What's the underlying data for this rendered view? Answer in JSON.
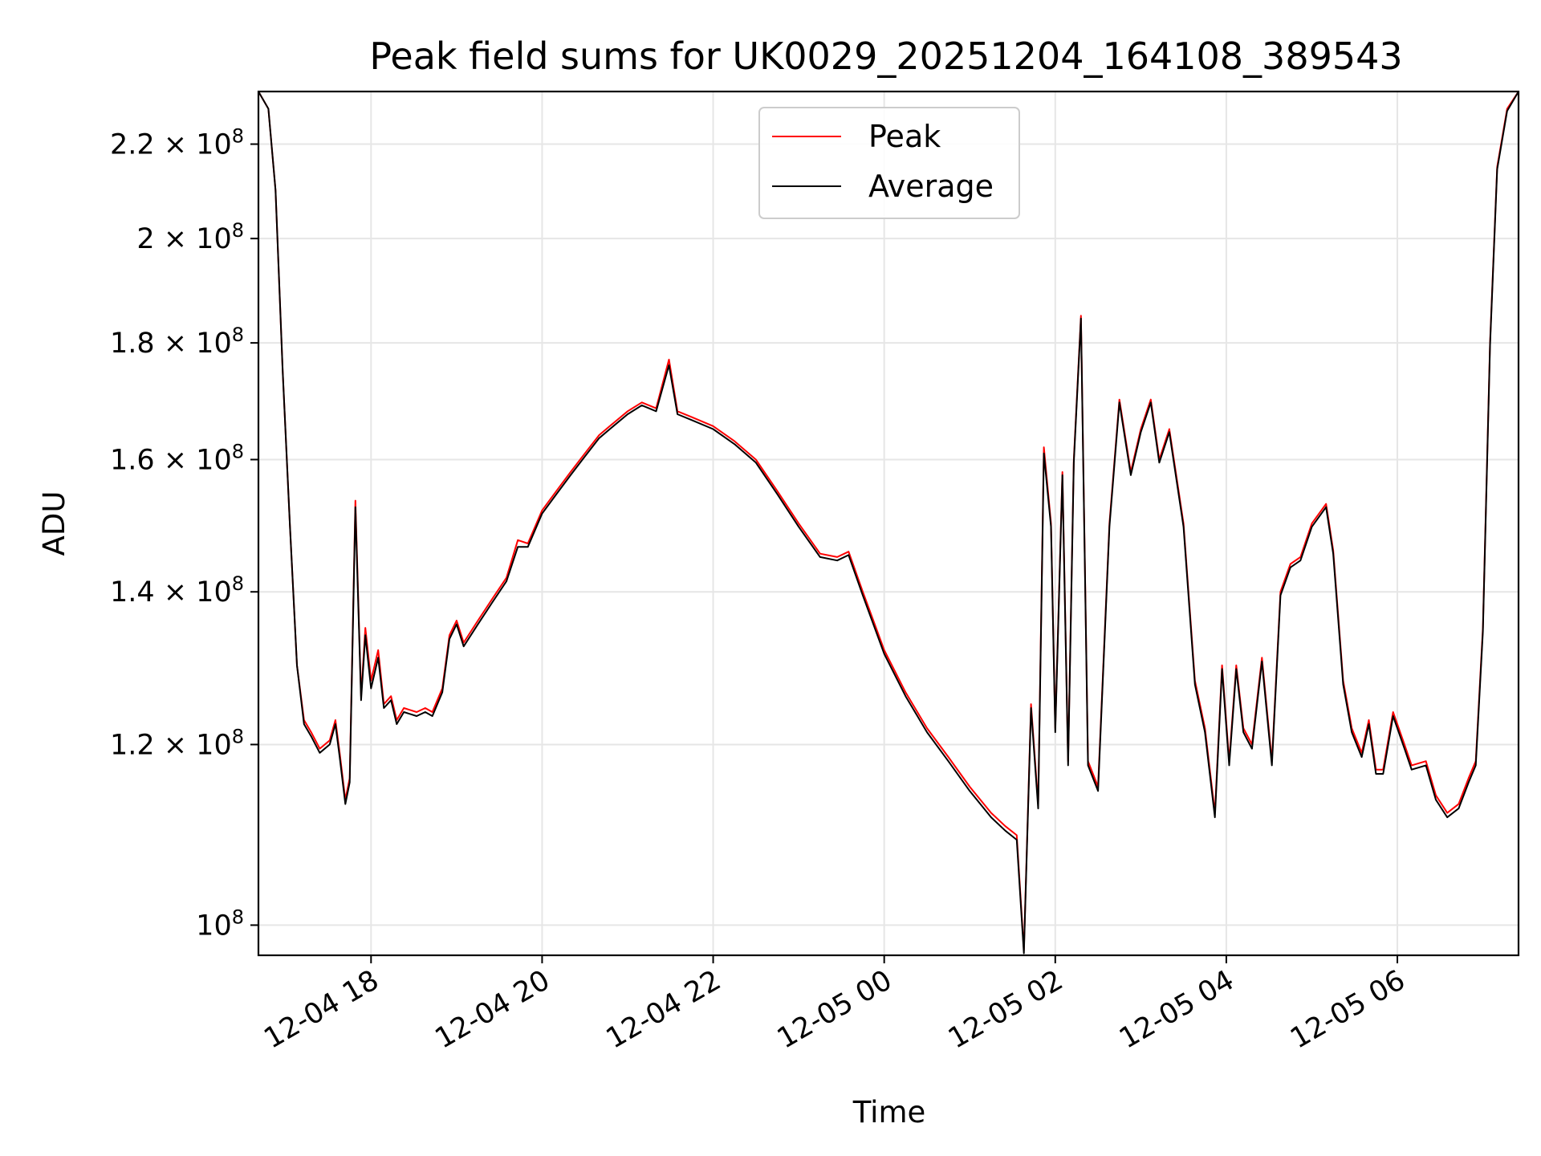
{
  "chart_data": {
    "type": "line",
    "title": "Peak field sums for UK0029_20251204_164108_389543",
    "xlabel": "Time",
    "ylabel": "ADU",
    "y_scale": "log",
    "ylim": [
      97000000,
      232000000
    ],
    "xlim": [
      "2025-12-04 16:41",
      "2025-12-05 07:25"
    ],
    "grid": true,
    "legend_position": "top-center",
    "x_ticks": [
      {
        "t": "2025-12-04 18:00",
        "label": "12-04 18"
      },
      {
        "t": "2025-12-04 20:00",
        "label": "12-04 20"
      },
      {
        "t": "2025-12-04 22:00",
        "label": "12-04 22"
      },
      {
        "t": "2025-12-05 00:00",
        "label": "12-05 00"
      },
      {
        "t": "2025-12-05 02:00",
        "label": "12-05 02"
      },
      {
        "t": "2025-12-05 04:00",
        "label": "12-05 04"
      },
      {
        "t": "2025-12-05 06:00",
        "label": "12-05 06"
      }
    ],
    "y_ticks": [
      {
        "value": 100000000,
        "mant": "",
        "exp": "8"
      },
      {
        "value": 120000000,
        "mant": "1.2",
        "exp": "8"
      },
      {
        "value": 140000000,
        "mant": "1.4",
        "exp": "8"
      },
      {
        "value": 160000000,
        "mant": "1.6",
        "exp": "8"
      },
      {
        "value": 180000000,
        "mant": "1.8",
        "exp": "8"
      },
      {
        "value": 200000000,
        "mant": "2",
        "exp": "8"
      },
      {
        "value": 220000000,
        "mant": "2.2",
        "exp": "8"
      }
    ],
    "series": [
      {
        "name": "Peak",
        "color": "#ff0000",
        "points": [
          [
            "2025-12-04 16:41",
            232.0
          ],
          [
            "2025-12-04 16:48",
            228.0
          ],
          [
            "2025-12-04 16:53",
            210.0
          ],
          [
            "2025-12-04 16:58",
            175.0
          ],
          [
            "2025-12-04 17:03",
            150.0
          ],
          [
            "2025-12-04 17:08",
            130.0
          ],
          [
            "2025-12-04 17:13",
            123.0
          ],
          [
            "2025-12-04 17:18",
            121.5
          ],
          [
            "2025-12-04 17:24",
            119.5
          ],
          [
            "2025-12-04 17:31",
            120.5
          ],
          [
            "2025-12-04 17:35",
            123.0
          ],
          [
            "2025-12-04 17:38",
            119.0
          ],
          [
            "2025-12-04 17:42",
            113.5
          ],
          [
            "2025-12-04 17:45",
            116.0
          ],
          [
            "2025-12-04 17:49",
            153.5
          ],
          [
            "2025-12-04 17:53",
            126.0
          ],
          [
            "2025-12-04 17:56",
            135.0
          ],
          [
            "2025-12-04 18:00",
            128.0
          ],
          [
            "2025-12-04 18:05",
            132.0
          ],
          [
            "2025-12-04 18:09",
            125.0
          ],
          [
            "2025-12-04 18:14",
            126.0
          ],
          [
            "2025-12-04 18:18",
            123.0
          ],
          [
            "2025-12-04 18:23",
            124.5
          ],
          [
            "2025-12-04 18:32",
            124.0
          ],
          [
            "2025-12-04 18:38",
            124.5
          ],
          [
            "2025-12-04 18:43",
            124.0
          ],
          [
            "2025-12-04 18:50",
            127.0
          ],
          [
            "2025-12-04 18:55",
            134.0
          ],
          [
            "2025-12-04 19:00",
            136.0
          ],
          [
            "2025-12-04 19:05",
            133.0
          ],
          [
            "2025-12-04 19:15",
            136.0
          ],
          [
            "2025-12-04 19:25",
            139.0
          ],
          [
            "2025-12-04 19:35",
            142.0
          ],
          [
            "2025-12-04 19:43",
            147.5
          ],
          [
            "2025-12-04 19:50",
            147.0
          ],
          [
            "2025-12-04 20:00",
            152.0
          ],
          [
            "2025-12-04 20:10",
            155.0
          ],
          [
            "2025-12-04 20:20",
            158.0
          ],
          [
            "2025-12-04 20:30",
            161.0
          ],
          [
            "2025-12-04 20:40",
            164.0
          ],
          [
            "2025-12-04 20:50",
            166.0
          ],
          [
            "2025-12-04 21:00",
            168.0
          ],
          [
            "2025-12-04 21:10",
            169.5
          ],
          [
            "2025-12-04 21:20",
            168.5
          ],
          [
            "2025-12-04 21:29",
            177.0
          ],
          [
            "2025-12-04 21:35",
            168.0
          ],
          [
            "2025-12-04 21:45",
            167.0
          ],
          [
            "2025-12-04 22:00",
            165.5
          ],
          [
            "2025-12-04 22:15",
            163.0
          ],
          [
            "2025-12-04 22:30",
            160.0
          ],
          [
            "2025-12-04 22:45",
            155.0
          ],
          [
            "2025-12-04 23:00",
            150.0
          ],
          [
            "2025-12-04 23:15",
            145.5
          ],
          [
            "2025-12-04 23:27",
            145.0
          ],
          [
            "2025-12-04 23:35",
            145.8
          ],
          [
            "2025-12-04 23:45",
            140.0
          ],
          [
            "2025-12-05 00:00",
            132.0
          ],
          [
            "2025-12-05 00:15",
            126.5
          ],
          [
            "2025-12-05 00:30",
            122.0
          ],
          [
            "2025-12-05 00:45",
            118.5
          ],
          [
            "2025-12-05 01:00",
            115.0
          ],
          [
            "2025-12-05 01:15",
            112.0
          ],
          [
            "2025-12-05 01:25",
            110.5
          ],
          [
            "2025-12-05 01:33",
            109.5
          ],
          [
            "2025-12-05 01:38",
            97.5
          ],
          [
            "2025-12-05 01:43",
            125.0
          ],
          [
            "2025-12-05 01:48",
            113.0
          ],
          [
            "2025-12-05 01:52",
            162.0
          ],
          [
            "2025-12-05 01:57",
            150.0
          ],
          [
            "2025-12-05 02:00",
            122.0
          ],
          [
            "2025-12-05 02:05",
            158.0
          ],
          [
            "2025-12-05 02:09",
            118.0
          ],
          [
            "2025-12-05 02:13",
            160.0
          ],
          [
            "2025-12-05 02:18",
            185.0
          ],
          [
            "2025-12-05 02:23",
            118.0
          ],
          [
            "2025-12-05 02:30",
            115.0
          ],
          [
            "2025-12-05 02:38",
            150.0
          ],
          [
            "2025-12-05 02:45",
            170.0
          ],
          [
            "2025-12-05 02:53",
            158.0
          ],
          [
            "2025-12-05 03:00",
            165.0
          ],
          [
            "2025-12-05 03:07",
            170.0
          ],
          [
            "2025-12-05 03:13",
            160.0
          ],
          [
            "2025-12-05 03:20",
            165.0
          ],
          [
            "2025-12-05 03:30",
            150.0
          ],
          [
            "2025-12-05 03:38",
            128.0
          ],
          [
            "2025-12-05 03:45",
            122.0
          ],
          [
            "2025-12-05 03:52",
            112.0
          ],
          [
            "2025-12-05 03:57",
            130.0
          ],
          [
            "2025-12-05 04:02",
            118.0
          ],
          [
            "2025-12-05 04:07",
            130.0
          ],
          [
            "2025-12-05 04:12",
            122.0
          ],
          [
            "2025-12-05 04:18",
            120.0
          ],
          [
            "2025-12-05 04:25",
            131.0
          ],
          [
            "2025-12-05 04:32",
            118.0
          ],
          [
            "2025-12-05 04:38",
            140.0
          ],
          [
            "2025-12-05 04:45",
            144.0
          ],
          [
            "2025-12-05 04:52",
            145.0
          ],
          [
            "2025-12-05 05:00",
            150.0
          ],
          [
            "2025-12-05 05:10",
            153.0
          ],
          [
            "2025-12-05 05:15",
            146.0
          ],
          [
            "2025-12-05 05:22",
            128.0
          ],
          [
            "2025-12-05 05:28",
            122.0
          ],
          [
            "2025-12-05 05:35",
            119.0
          ],
          [
            "2025-12-05 05:40",
            123.0
          ],
          [
            "2025-12-05 05:45",
            117.0
          ],
          [
            "2025-12-05 05:50",
            117.0
          ],
          [
            "2025-12-05 05:57",
            124.0
          ],
          [
            "2025-12-05 06:05",
            120.0
          ],
          [
            "2025-12-05 06:10",
            117.5
          ],
          [
            "2025-12-05 06:20",
            118.0
          ],
          [
            "2025-12-05 06:27",
            114.0
          ],
          [
            "2025-12-05 06:35",
            112.0
          ],
          [
            "2025-12-05 06:43",
            113.0
          ],
          [
            "2025-12-05 06:50",
            116.0
          ],
          [
            "2025-12-05 06:55",
            118.0
          ],
          [
            "2025-12-05 07:00",
            135.0
          ],
          [
            "2025-12-05 07:05",
            180.0
          ],
          [
            "2025-12-05 07:10",
            215.0
          ],
          [
            "2025-12-05 07:17",
            228.0
          ],
          [
            "2025-12-05 07:25",
            232.0
          ]
        ]
      },
      {
        "name": "Average",
        "color": "#000000",
        "points": [
          [
            "2025-12-04 16:41",
            232.0
          ],
          [
            "2025-12-04 16:48",
            228.0
          ],
          [
            "2025-12-04 16:53",
            210.0
          ],
          [
            "2025-12-04 16:58",
            175.0
          ],
          [
            "2025-12-04 17:03",
            150.0
          ],
          [
            "2025-12-04 17:08",
            130.0
          ],
          [
            "2025-12-04 17:13",
            122.5
          ],
          [
            "2025-12-04 17:18",
            121.0
          ],
          [
            "2025-12-04 17:24",
            119.0
          ],
          [
            "2025-12-04 17:31",
            120.0
          ],
          [
            "2025-12-04 17:35",
            122.5
          ],
          [
            "2025-12-04 17:38",
            118.5
          ],
          [
            "2025-12-04 17:42",
            113.0
          ],
          [
            "2025-12-04 17:45",
            115.5
          ],
          [
            "2025-12-04 17:49",
            152.5
          ],
          [
            "2025-12-04 17:53",
            125.5
          ],
          [
            "2025-12-04 17:56",
            134.0
          ],
          [
            "2025-12-04 18:00",
            127.0
          ],
          [
            "2025-12-04 18:05",
            131.0
          ],
          [
            "2025-12-04 18:09",
            124.5
          ],
          [
            "2025-12-04 18:14",
            125.5
          ],
          [
            "2025-12-04 18:18",
            122.5
          ],
          [
            "2025-12-04 18:23",
            124.0
          ],
          [
            "2025-12-04 18:32",
            123.5
          ],
          [
            "2025-12-04 18:38",
            124.0
          ],
          [
            "2025-12-04 18:43",
            123.5
          ],
          [
            "2025-12-04 18:50",
            126.5
          ],
          [
            "2025-12-04 18:55",
            133.5
          ],
          [
            "2025-12-04 19:00",
            135.5
          ],
          [
            "2025-12-04 19:05",
            132.5
          ],
          [
            "2025-12-04 19:15",
            135.5
          ],
          [
            "2025-12-04 19:25",
            138.5
          ],
          [
            "2025-12-04 19:35",
            141.5
          ],
          [
            "2025-12-04 19:43",
            146.5
          ],
          [
            "2025-12-04 19:50",
            146.5
          ],
          [
            "2025-12-04 20:00",
            151.5
          ],
          [
            "2025-12-04 20:10",
            154.5
          ],
          [
            "2025-12-04 20:20",
            157.5
          ],
          [
            "2025-12-04 20:30",
            160.5
          ],
          [
            "2025-12-04 20:40",
            163.5
          ],
          [
            "2025-12-04 20:50",
            165.5
          ],
          [
            "2025-12-04 21:00",
            167.5
          ],
          [
            "2025-12-04 21:10",
            169.0
          ],
          [
            "2025-12-04 21:20",
            168.0
          ],
          [
            "2025-12-04 21:29",
            176.0
          ],
          [
            "2025-12-04 21:35",
            167.5
          ],
          [
            "2025-12-04 21:45",
            166.5
          ],
          [
            "2025-12-04 22:00",
            165.0
          ],
          [
            "2025-12-04 22:15",
            162.5
          ],
          [
            "2025-12-04 22:30",
            159.5
          ],
          [
            "2025-12-04 22:45",
            154.5
          ],
          [
            "2025-12-04 23:00",
            149.5
          ],
          [
            "2025-12-04 23:15",
            145.0
          ],
          [
            "2025-12-04 23:27",
            144.5
          ],
          [
            "2025-12-04 23:35",
            145.3
          ],
          [
            "2025-12-04 23:45",
            139.5
          ],
          [
            "2025-12-05 00:00",
            131.5
          ],
          [
            "2025-12-05 00:15",
            126.0
          ],
          [
            "2025-12-05 00:30",
            121.5
          ],
          [
            "2025-12-05 00:45",
            118.0
          ],
          [
            "2025-12-05 01:00",
            114.5
          ],
          [
            "2025-12-05 01:15",
            111.5
          ],
          [
            "2025-12-05 01:25",
            110.0
          ],
          [
            "2025-12-05 01:33",
            109.0
          ],
          [
            "2025-12-05 01:38",
            97.2
          ],
          [
            "2025-12-05 01:43",
            124.5
          ],
          [
            "2025-12-05 01:48",
            112.5
          ],
          [
            "2025-12-05 01:52",
            161.0
          ],
          [
            "2025-12-05 01:57",
            149.5
          ],
          [
            "2025-12-05 02:00",
            121.5
          ],
          [
            "2025-12-05 02:05",
            157.5
          ],
          [
            "2025-12-05 02:09",
            117.5
          ],
          [
            "2025-12-05 02:13",
            159.5
          ],
          [
            "2025-12-05 02:18",
            184.5
          ],
          [
            "2025-12-05 02:23",
            117.5
          ],
          [
            "2025-12-05 02:30",
            114.5
          ],
          [
            "2025-12-05 02:38",
            149.5
          ],
          [
            "2025-12-05 02:45",
            169.5
          ],
          [
            "2025-12-05 02:53",
            157.5
          ],
          [
            "2025-12-05 03:00",
            164.5
          ],
          [
            "2025-12-05 03:07",
            169.5
          ],
          [
            "2025-12-05 03:13",
            159.5
          ],
          [
            "2025-12-05 03:20",
            164.5
          ],
          [
            "2025-12-05 03:30",
            149.5
          ],
          [
            "2025-12-05 03:38",
            127.5
          ],
          [
            "2025-12-05 03:45",
            121.5
          ],
          [
            "2025-12-05 03:52",
            111.5
          ],
          [
            "2025-12-05 03:57",
            129.5
          ],
          [
            "2025-12-05 04:02",
            117.5
          ],
          [
            "2025-12-05 04:07",
            129.5
          ],
          [
            "2025-12-05 04:12",
            121.5
          ],
          [
            "2025-12-05 04:18",
            119.5
          ],
          [
            "2025-12-05 04:25",
            130.5
          ],
          [
            "2025-12-05 04:32",
            117.5
          ],
          [
            "2025-12-05 04:38",
            139.5
          ],
          [
            "2025-12-05 04:45",
            143.5
          ],
          [
            "2025-12-05 04:52",
            144.5
          ],
          [
            "2025-12-05 05:00",
            149.5
          ],
          [
            "2025-12-05 05:10",
            152.5
          ],
          [
            "2025-12-05 05:15",
            145.5
          ],
          [
            "2025-12-05 05:22",
            127.5
          ],
          [
            "2025-12-05 05:28",
            121.5
          ],
          [
            "2025-12-05 05:35",
            118.5
          ],
          [
            "2025-12-05 05:40",
            122.5
          ],
          [
            "2025-12-05 05:45",
            116.5
          ],
          [
            "2025-12-05 05:50",
            116.5
          ],
          [
            "2025-12-05 05:57",
            123.5
          ],
          [
            "2025-12-05 06:05",
            119.5
          ],
          [
            "2025-12-05 06:10",
            117.0
          ],
          [
            "2025-12-05 06:20",
            117.5
          ],
          [
            "2025-12-05 06:27",
            113.5
          ],
          [
            "2025-12-05 06:35",
            111.5
          ],
          [
            "2025-12-05 06:43",
            112.5
          ],
          [
            "2025-12-05 06:50",
            115.5
          ],
          [
            "2025-12-05 06:55",
            117.5
          ],
          [
            "2025-12-05 07:00",
            134.5
          ],
          [
            "2025-12-05 07:05",
            179.5
          ],
          [
            "2025-12-05 07:10",
            214.5
          ],
          [
            "2025-12-05 07:17",
            227.5
          ],
          [
            "2025-12-05 07:25",
            232.0
          ]
        ]
      }
    ],
    "value_unit_multiplier": 1000000
  }
}
